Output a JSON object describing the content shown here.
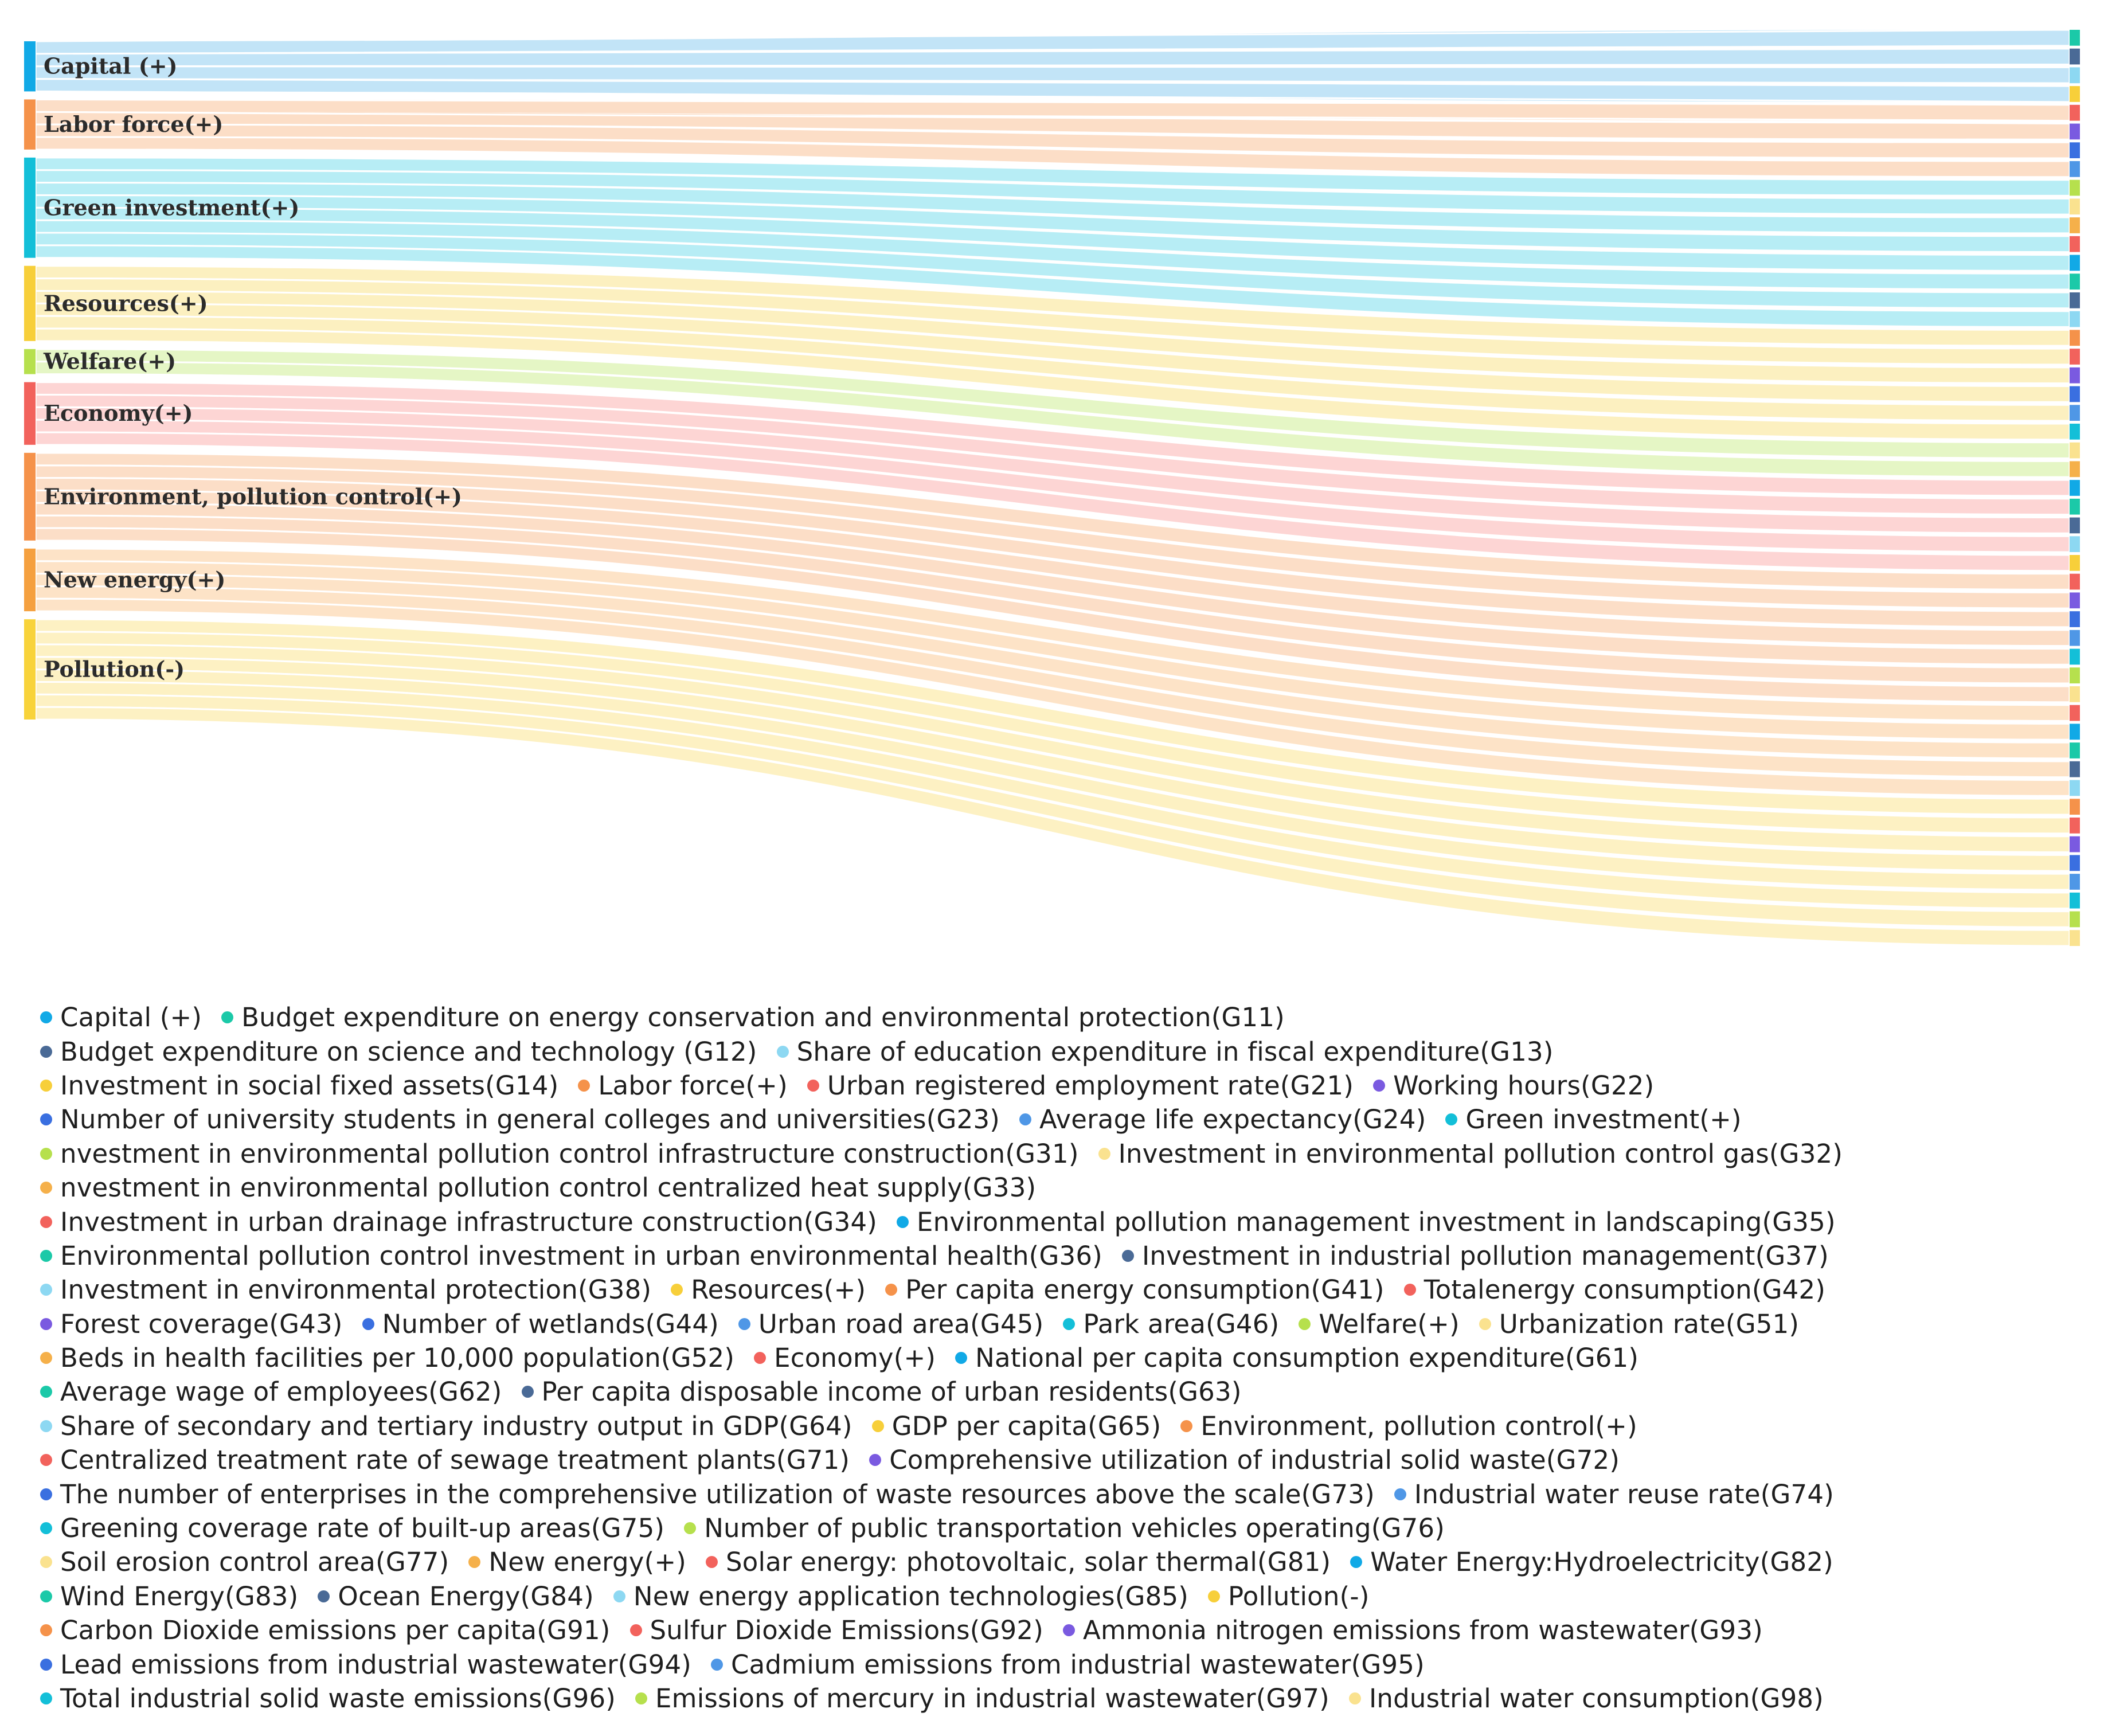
{
  "colors": {
    "Capital (+)": "#11a9e6",
    "Labor force(+)": "#f5924a",
    "Green investment(+)": "#13bfd8",
    "Resources(+)": "#f7cf3a",
    "Welfare(+)": "#b6e04d",
    "Economy(+)": "#f2625c",
    "Environment, pollution control(+)": "#f5924a",
    "New energy(+)": "#f5a03f",
    "Pollution(-)": "#f8d33a"
  },
  "sources": [
    {
      "label": "Capital (+)",
      "display": "Capital (+)",
      "weight": 4,
      "color": "#11a9e6"
    },
    {
      "label": "Labor force(+)",
      "display": "Labor force(+)",
      "weight": 4,
      "color": "#f5924a"
    },
    {
      "label": "Green investment(+)",
      "display": "Green investment(+)",
      "weight": 8,
      "color": "#13bfd8"
    },
    {
      "label": "Resources(+)",
      "display": "Resources(+)",
      "weight": 6,
      "color": "#f7cf3a"
    },
    {
      "label": "Welfare(+)",
      "display": "Welfare(+)",
      "weight": 2,
      "color": "#b6e04d"
    },
    {
      "label": "Economy(+)",
      "display": "Economy(+)",
      "weight": 5,
      "color": "#f2625c"
    },
    {
      "label": "Environment, pollution control(+)",
      "display": "Environment, pollution control(+)",
      "weight": 7,
      "color": "#f5924a"
    },
    {
      "label": "New energy(+)",
      "display": "New energy(+)",
      "weight": 5,
      "color": "#f5a03f"
    },
    {
      "label": "Pollution(-)",
      "display": "Pollution(-)",
      "weight": 8,
      "color": "#f8d33a"
    }
  ],
  "targets": [
    {
      "source": 0,
      "code": "G11",
      "color": "#1bc9a8",
      "flow": "#bfe3f7"
    },
    {
      "source": 0,
      "code": "G12",
      "color": "#4a6a96",
      "flow": "#bfe3f7"
    },
    {
      "source": 0,
      "code": "G13",
      "color": "#8dd8f2",
      "flow": "#bfe3f7"
    },
    {
      "source": 0,
      "code": "G14",
      "color": "#f7cf3a",
      "flow": "#bfe3f7"
    },
    {
      "source": 1,
      "code": "G21",
      "color": "#f2625c",
      "flow": "#fcdcc4"
    },
    {
      "source": 1,
      "code": "G22",
      "color": "#7a5ae0",
      "flow": "#fcdcc4"
    },
    {
      "source": 1,
      "code": "G23",
      "color": "#3a6fe0",
      "flow": "#fcdcc4"
    },
    {
      "source": 1,
      "code": "G24",
      "color": "#4f97e6",
      "flow": "#fcdcc4"
    },
    {
      "source": 2,
      "code": "G31",
      "color": "#b6e04d",
      "flow": "#b3ecf4"
    },
    {
      "source": 2,
      "code": "G32",
      "color": "#fae28f",
      "flow": "#b3ecf4"
    },
    {
      "source": 2,
      "code": "G33",
      "color": "#f5b04a",
      "flow": "#b3ecf4"
    },
    {
      "source": 2,
      "code": "G34",
      "color": "#f2625c",
      "flow": "#b3ecf4"
    },
    {
      "source": 2,
      "code": "G35",
      "color": "#11a9e6",
      "flow": "#b3ecf4"
    },
    {
      "source": 2,
      "code": "G36",
      "color": "#1bc9a8",
      "flow": "#b3ecf4"
    },
    {
      "source": 2,
      "code": "G37",
      "color": "#4a6a96",
      "flow": "#b3ecf4"
    },
    {
      "source": 2,
      "code": "G38",
      "color": "#8dd8f2",
      "flow": "#b3ecf4"
    },
    {
      "source": 3,
      "code": "G41",
      "color": "#f5924a",
      "flow": "#fcefbd"
    },
    {
      "source": 3,
      "code": "G42",
      "color": "#f2625c",
      "flow": "#fcefbd"
    },
    {
      "source": 3,
      "code": "G43",
      "color": "#7a5ae0",
      "flow": "#fcefbd"
    },
    {
      "source": 3,
      "code": "G44",
      "color": "#3a6fe0",
      "flow": "#fcefbd"
    },
    {
      "source": 3,
      "code": "G45",
      "color": "#4f97e6",
      "flow": "#fcefbd"
    },
    {
      "source": 3,
      "code": "G46",
      "color": "#13bfd8",
      "flow": "#fcefbd"
    },
    {
      "source": 4,
      "code": "G51",
      "color": "#fae28f",
      "flow": "#e4f5c2"
    },
    {
      "source": 4,
      "code": "G52",
      "color": "#f5b04a",
      "flow": "#e4f5c2"
    },
    {
      "source": 5,
      "code": "G61",
      "color": "#11a9e6",
      "flow": "#fdd3d2"
    },
    {
      "source": 5,
      "code": "G62",
      "color": "#1bc9a8",
      "flow": "#fdd3d2"
    },
    {
      "source": 5,
      "code": "G63",
      "color": "#4a6a96",
      "flow": "#fdd3d2"
    },
    {
      "source": 5,
      "code": "G64",
      "color": "#8dd8f2",
      "flow": "#fdd3d2"
    },
    {
      "source": 5,
      "code": "G65",
      "color": "#f7cf3a",
      "flow": "#fdd3d2"
    },
    {
      "source": 6,
      "code": "G71",
      "color": "#f2625c",
      "flow": "#fcdcc4"
    },
    {
      "source": 6,
      "code": "G72",
      "color": "#7a5ae0",
      "flow": "#fcdcc4"
    },
    {
      "source": 6,
      "code": "G73",
      "color": "#3a6fe0",
      "flow": "#fcdcc4"
    },
    {
      "source": 6,
      "code": "G74",
      "color": "#4f97e6",
      "flow": "#fcdcc4"
    },
    {
      "source": 6,
      "code": "G75",
      "color": "#13bfd8",
      "flow": "#fcdcc4"
    },
    {
      "source": 6,
      "code": "G76",
      "color": "#b6e04d",
      "flow": "#fcdcc4"
    },
    {
      "source": 6,
      "code": "G77",
      "color": "#fae28f",
      "flow": "#fcdcc4"
    },
    {
      "source": 7,
      "code": "G81",
      "color": "#f2625c",
      "flow": "#fde2c4"
    },
    {
      "source": 7,
      "code": "G82",
      "color": "#11a9e6",
      "flow": "#fde2c4"
    },
    {
      "source": 7,
      "code": "G83",
      "color": "#1bc9a8",
      "flow": "#fde2c4"
    },
    {
      "source": 7,
      "code": "G84",
      "color": "#4a6a96",
      "flow": "#fde2c4"
    },
    {
      "source": 7,
      "code": "G85",
      "color": "#8dd8f2",
      "flow": "#fde2c4"
    },
    {
      "source": 8,
      "code": "G91",
      "color": "#f5924a",
      "flow": "#fdf0c0"
    },
    {
      "source": 8,
      "code": "G92",
      "color": "#f2625c",
      "flow": "#fdf0c0"
    },
    {
      "source": 8,
      "code": "G93",
      "color": "#7a5ae0",
      "flow": "#fdf0c0"
    },
    {
      "source": 8,
      "code": "G94",
      "color": "#3a6fe0",
      "flow": "#fdf0c0"
    },
    {
      "source": 8,
      "code": "G95",
      "color": "#4f97e6",
      "flow": "#fdf0c0"
    },
    {
      "source": 8,
      "code": "G96",
      "color": "#13bfd8",
      "flow": "#fdf0c0"
    },
    {
      "source": 8,
      "code": "G97",
      "color": "#b6e04d",
      "flow": "#fdf0c0"
    },
    {
      "source": 8,
      "code": "G98",
      "color": "#fae28f",
      "flow": "#fdf0c0"
    }
  ],
  "legend_rows": [
    [
      {
        "color": "#11a9e6",
        "text": "Capital (+)"
      },
      {
        "color": "#1bc9a8",
        "text": "Budget expenditure on energy conservation and environmental protection(G11)"
      }
    ],
    [
      {
        "color": "#4a6a96",
        "text": "Budget expenditure on science and technology (G12)"
      },
      {
        "color": "#8dd8f2",
        "text": "Share of education expenditure in fiscal expenditure(G13)"
      }
    ],
    [
      {
        "color": "#f7cf3a",
        "text": "Investment in social fixed assets(G14)"
      },
      {
        "color": "#f5924a",
        "text": "Labor force(+)"
      },
      {
        "color": "#f2625c",
        "text": "Urban registered employment rate(G21)"
      },
      {
        "color": "#7a5ae0",
        "text": "Working hours(G22)"
      }
    ],
    [
      {
        "color": "#3a6fe0",
        "text": "Number of university students in general colleges and universities(G23)"
      },
      {
        "color": "#4f97e6",
        "text": "Average life expectancy(G24)"
      },
      {
        "color": "#13bfd8",
        "text": "Green investment(+)"
      }
    ],
    [
      {
        "color": "#b6e04d",
        "text": "nvestment in environmental pollution control infrastructure construction(G31)"
      },
      {
        "color": "#fae28f",
        "text": "Investment in environmental pollution control gas(G32)"
      }
    ],
    [
      {
        "color": "#f5b04a",
        "text": "nvestment in environmental pollution control centralized heat supply(G33)"
      }
    ],
    [
      {
        "color": "#f2625c",
        "text": "Investment in urban drainage infrastructure construction(G34)"
      },
      {
        "color": "#11a9e6",
        "text": "Environmental pollution management investment in landscaping(G35)"
      }
    ],
    [
      {
        "color": "#1bc9a8",
        "text": "Environmental pollution control investment in urban environmental health(G36)"
      },
      {
        "color": "#4a6a96",
        "text": "Investment in industrial pollution management(G37)"
      }
    ],
    [
      {
        "color": "#8dd8f2",
        "text": "Investment in environmental protection(G38)"
      },
      {
        "color": "#f7cf3a",
        "text": "Resources(+)"
      },
      {
        "color": "#f5924a",
        "text": "Per capita energy consumption(G41)"
      },
      {
        "color": "#f2625c",
        "text": "Totalenergy consumption(G42)"
      }
    ],
    [
      {
        "color": "#7a5ae0",
        "text": "Forest coverage(G43)"
      },
      {
        "color": "#3a6fe0",
        "text": "Number of wetlands(G44)"
      },
      {
        "color": "#4f97e6",
        "text": "Urban road area(G45)"
      },
      {
        "color": "#13bfd8",
        "text": "Park area(G46)"
      },
      {
        "color": "#b6e04d",
        "text": "Welfare(+)"
      },
      {
        "color": "#fae28f",
        "text": "Urbanization rate(G51)"
      }
    ],
    [
      {
        "color": "#f5b04a",
        "text": "Beds in health facilities per 10,000 population(G52)"
      },
      {
        "color": "#f2625c",
        "text": "Economy(+)"
      },
      {
        "color": "#11a9e6",
        "text": "National per capita consumption expenditure(G61)"
      }
    ],
    [
      {
        "color": "#1bc9a8",
        "text": "Average wage of employees(G62)"
      },
      {
        "color": "#4a6a96",
        "text": "Per capita disposable income of urban residents(G63)"
      }
    ],
    [
      {
        "color": "#8dd8f2",
        "text": "Share of secondary and tertiary industry output in GDP(G64)"
      },
      {
        "color": "#f7cf3a",
        "text": "GDP per capita(G65)"
      },
      {
        "color": "#f5924a",
        "text": "Environment, pollution control(+)"
      }
    ],
    [
      {
        "color": "#f2625c",
        "text": "Centralized treatment rate of sewage treatment plants(G71)"
      },
      {
        "color": "#7a5ae0",
        "text": "Comprehensive utilization of industrial solid waste(G72)"
      }
    ],
    [
      {
        "color": "#3a6fe0",
        "text": "The number of enterprises in the comprehensive utilization of waste resources above the scale(G73)"
      },
      {
        "color": "#4f97e6",
        "text": "Industrial water reuse rate(G74)"
      }
    ],
    [
      {
        "color": "#13bfd8",
        "text": "Greening coverage rate of built-up areas(G75)"
      },
      {
        "color": "#b6e04d",
        "text": "Number of public transportation vehicles operating(G76)"
      }
    ],
    [
      {
        "color": "#fae28f",
        "text": "Soil erosion control area(G77)"
      },
      {
        "color": "#f5b04a",
        "text": "New energy(+)"
      },
      {
        "color": "#f2625c",
        "text": "Solar energy: photovoltaic, solar thermal(G81)"
      },
      {
        "color": "#11a9e6",
        "text": "Water Energy:Hydroelectricity(G82)"
      }
    ],
    [
      {
        "color": "#1bc9a8",
        "text": "Wind Energy(G83)"
      },
      {
        "color": "#4a6a96",
        "text": "Ocean Energy(G84)"
      },
      {
        "color": "#8dd8f2",
        "text": "New energy application technologies(G85)"
      },
      {
        "color": "#f7cf3a",
        "text": "Pollution(-)"
      }
    ],
    [
      {
        "color": "#f5924a",
        "text": "Carbon Dioxide emissions per capita(G91)"
      },
      {
        "color": "#f2625c",
        "text": "Sulfur Dioxide Emissions(G92)"
      },
      {
        "color": "#7a5ae0",
        "text": "Ammonia nitrogen emissions from wastewater(G93)"
      }
    ],
    [
      {
        "color": "#3a6fe0",
        "text": "Lead emissions from industrial wastewater(G94)"
      },
      {
        "color": "#4f97e6",
        "text": "Cadmium emissions from industrial wastewater(G95)"
      }
    ],
    [
      {
        "color": "#13bfd8",
        "text": "Total industrial solid waste emissions(G96)"
      },
      {
        "color": "#b6e04d",
        "text": "Emissions of mercury in industrial wastewater(G97)"
      },
      {
        "color": "#fae28f",
        "text": "Industrial water consumption(G98)"
      }
    ]
  ]
}
